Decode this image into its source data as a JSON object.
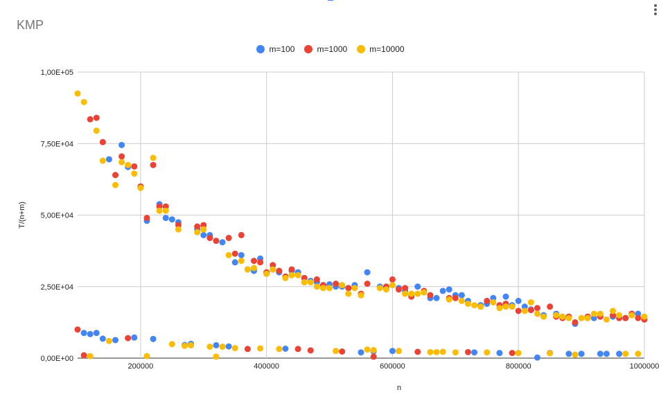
{
  "chart_data": {
    "type": "scatter",
    "title": "KMP",
    "xlabel": "n",
    "ylabel": "T/(n+m)",
    "xlim": [
      100000,
      1000000
    ],
    "ylim": [
      0,
      100000
    ],
    "x_tick_labels": [
      "200000",
      "400000",
      "600000",
      "800000",
      "1000000"
    ],
    "x_tick_values": [
      200000,
      400000,
      600000,
      800000,
      1000000
    ],
    "y_tick_labels": [
      "0,00E+00",
      "2,50E+04",
      "5,00E+04",
      "7,50E+04",
      "1,00E+05"
    ],
    "y_tick_values": [
      0,
      25000,
      50000,
      75000,
      100000
    ],
    "grid": true,
    "legend_position": "top",
    "series": [
      {
        "name": "m=100",
        "color": "#4285f4",
        "points": [
          [
            110000,
            8800
          ],
          [
            120000,
            8400
          ],
          [
            130000,
            8800
          ],
          [
            140000,
            6800
          ],
          [
            150000,
            69500
          ],
          [
            160000,
            6300
          ],
          [
            170000,
            74500
          ],
          [
            180000,
            66800
          ],
          [
            190000,
            7200
          ],
          [
            200000,
            60000
          ],
          [
            210000,
            48000
          ],
          [
            220000,
            6700
          ],
          [
            230000,
            53800
          ],
          [
            240000,
            49000
          ],
          [
            250000,
            48500
          ],
          [
            260000,
            47500
          ],
          [
            270000,
            4600
          ],
          [
            280000,
            5000
          ],
          [
            290000,
            45000
          ],
          [
            300000,
            43000
          ],
          [
            310000,
            43000
          ],
          [
            320000,
            4500
          ],
          [
            330000,
            40500
          ],
          [
            340000,
            4100
          ],
          [
            350000,
            33500
          ],
          [
            360000,
            36000
          ],
          [
            370000,
            31000
          ],
          [
            380000,
            30500
          ],
          [
            390000,
            34800
          ],
          [
            400000,
            29500
          ],
          [
            410000,
            31000
          ],
          [
            420000,
            30000
          ],
          [
            430000,
            3300
          ],
          [
            440000,
            30500
          ],
          [
            450000,
            30000
          ],
          [
            460000,
            28000
          ],
          [
            470000,
            27000
          ],
          [
            480000,
            26500
          ],
          [
            490000,
            25500
          ],
          [
            500000,
            25800
          ],
          [
            510000,
            25000
          ],
          [
            520000,
            25000
          ],
          [
            530000,
            24500
          ],
          [
            540000,
            25500
          ],
          [
            550000,
            2000
          ],
          [
            560000,
            30000
          ],
          [
            570000,
            2400
          ],
          [
            580000,
            25000
          ],
          [
            590000,
            24500
          ],
          [
            600000,
            2500
          ],
          [
            610000,
            24500
          ],
          [
            620000,
            23500
          ],
          [
            630000,
            22000
          ],
          [
            640000,
            25000
          ],
          [
            650000,
            23000
          ],
          [
            660000,
            21000
          ],
          [
            670000,
            21000
          ],
          [
            680000,
            23500
          ],
          [
            690000,
            24000
          ],
          [
            700000,
            22000
          ],
          [
            710000,
            22000
          ],
          [
            720000,
            20000
          ],
          [
            730000,
            2000
          ],
          [
            740000,
            18500
          ],
          [
            750000,
            19000
          ],
          [
            760000,
            21000
          ],
          [
            770000,
            1800
          ],
          [
            780000,
            21500
          ],
          [
            790000,
            18500
          ],
          [
            800000,
            20000
          ],
          [
            810000,
            18000
          ],
          [
            820000,
            17000
          ],
          [
            830000,
            200
          ],
          [
            840000,
            15000
          ],
          [
            850000,
            1800
          ],
          [
            860000,
            15500
          ],
          [
            870000,
            14500
          ],
          [
            880000,
            1500
          ],
          [
            890000,
            12000
          ],
          [
            900000,
            1500
          ],
          [
            910000,
            14000
          ],
          [
            920000,
            14000
          ],
          [
            930000,
            1500
          ],
          [
            940000,
            1500
          ],
          [
            950000,
            14500
          ],
          [
            960000,
            1500
          ],
          [
            970000,
            14000
          ],
          [
            980000,
            15500
          ],
          [
            990000,
            15500
          ],
          [
            1000000,
            13500
          ]
        ]
      },
      {
        "name": "m=1000",
        "color": "#ea4335",
        "points": [
          [
            100000,
            10000
          ],
          [
            110000,
            1000
          ],
          [
            120000,
            83500
          ],
          [
            130000,
            84000
          ],
          [
            140000,
            75500
          ],
          [
            160000,
            64000
          ],
          [
            170000,
            70500
          ],
          [
            180000,
            7000
          ],
          [
            190000,
            67000
          ],
          [
            200000,
            60000
          ],
          [
            210000,
            49000
          ],
          [
            220000,
            67500
          ],
          [
            230000,
            53000
          ],
          [
            240000,
            53000
          ],
          [
            260000,
            46500
          ],
          [
            290000,
            46000
          ],
          [
            300000,
            46500
          ],
          [
            310000,
            42000
          ],
          [
            320000,
            41000
          ],
          [
            340000,
            42000
          ],
          [
            350000,
            36500
          ],
          [
            360000,
            43000
          ],
          [
            370000,
            3200
          ],
          [
            380000,
            34000
          ],
          [
            390000,
            33500
          ],
          [
            400000,
            30000
          ],
          [
            410000,
            32500
          ],
          [
            420000,
            30500
          ],
          [
            430000,
            28500
          ],
          [
            440000,
            31000
          ],
          [
            450000,
            3200
          ],
          [
            460000,
            28000
          ],
          [
            470000,
            2700
          ],
          [
            480000,
            27500
          ],
          [
            490000,
            25500
          ],
          [
            510000,
            26000
          ],
          [
            520000,
            2300
          ],
          [
            530000,
            24500
          ],
          [
            550000,
            22500
          ],
          [
            560000,
            26000
          ],
          [
            570000,
            500
          ],
          [
            590000,
            25000
          ],
          [
            600000,
            27500
          ],
          [
            610000,
            24000
          ],
          [
            620000,
            24500
          ],
          [
            630000,
            21500
          ],
          [
            640000,
            2200
          ],
          [
            650000,
            23500
          ],
          [
            660000,
            22000
          ],
          [
            690000,
            21000
          ],
          [
            700000,
            21000
          ],
          [
            720000,
            2100
          ],
          [
            740000,
            18000
          ],
          [
            750000,
            20000
          ],
          [
            770000,
            18500
          ],
          [
            780000,
            19000
          ],
          [
            790000,
            1800
          ],
          [
            800000,
            16500
          ],
          [
            820000,
            16800
          ],
          [
            830000,
            17500
          ],
          [
            850000,
            18000
          ],
          [
            860000,
            14500
          ],
          [
            870000,
            14000
          ],
          [
            880000,
            14500
          ],
          [
            890000,
            12500
          ],
          [
            910000,
            14500
          ],
          [
            930000,
            14500
          ],
          [
            950000,
            15000
          ],
          [
            960000,
            14000
          ],
          [
            970000,
            14000
          ],
          [
            980000,
            15500
          ],
          [
            990000,
            14000
          ],
          [
            1000000,
            13500
          ]
        ]
      },
      {
        "name": "m=10000",
        "color": "#fbbc04",
        "points": [
          [
            100000,
            92500
          ],
          [
            110000,
            89500
          ],
          [
            120000,
            700
          ],
          [
            130000,
            79500
          ],
          [
            140000,
            69000
          ],
          [
            150000,
            6000
          ],
          [
            160000,
            60500
          ],
          [
            170000,
            68500
          ],
          [
            180000,
            67500
          ],
          [
            190000,
            64500
          ],
          [
            200000,
            59500
          ],
          [
            210000,
            700
          ],
          [
            220000,
            70000
          ],
          [
            230000,
            51500
          ],
          [
            240000,
            51500
          ],
          [
            250000,
            4900
          ],
          [
            260000,
            45000
          ],
          [
            270000,
            4300
          ],
          [
            280000,
            4500
          ],
          [
            290000,
            44000
          ],
          [
            300000,
            45000
          ],
          [
            310000,
            4000
          ],
          [
            320000,
            500
          ],
          [
            330000,
            4000
          ],
          [
            340000,
            36000
          ],
          [
            350000,
            3500
          ],
          [
            360000,
            34000
          ],
          [
            370000,
            31000
          ],
          [
            380000,
            31500
          ],
          [
            390000,
            3400
          ],
          [
            400000,
            29500
          ],
          [
            410000,
            31000
          ],
          [
            420000,
            3200
          ],
          [
            430000,
            28000
          ],
          [
            440000,
            29000
          ],
          [
            450000,
            29000
          ],
          [
            460000,
            26500
          ],
          [
            470000,
            26500
          ],
          [
            480000,
            25000
          ],
          [
            490000,
            24500
          ],
          [
            500000,
            24500
          ],
          [
            510000,
            2500
          ],
          [
            520000,
            25500
          ],
          [
            530000,
            22500
          ],
          [
            540000,
            24500
          ],
          [
            550000,
            22000
          ],
          [
            560000,
            3000
          ],
          [
            570000,
            2800
          ],
          [
            580000,
            24500
          ],
          [
            590000,
            24000
          ],
          [
            600000,
            25500
          ],
          [
            610000,
            2500
          ],
          [
            620000,
            22500
          ],
          [
            630000,
            22500
          ],
          [
            640000,
            22500
          ],
          [
            650000,
            23000
          ],
          [
            660000,
            2100
          ],
          [
            670000,
            2100
          ],
          [
            680000,
            2200
          ],
          [
            690000,
            20500
          ],
          [
            700000,
            2000
          ],
          [
            710000,
            20000
          ],
          [
            720000,
            19000
          ],
          [
            730000,
            18500
          ],
          [
            740000,
            18000
          ],
          [
            750000,
            2000
          ],
          [
            760000,
            19500
          ],
          [
            770000,
            17500
          ],
          [
            780000,
            18000
          ],
          [
            790000,
            18000
          ],
          [
            800000,
            1800
          ],
          [
            810000,
            16500
          ],
          [
            820000,
            19500
          ],
          [
            830000,
            15500
          ],
          [
            840000,
            14500
          ],
          [
            850000,
            1700
          ],
          [
            860000,
            15000
          ],
          [
            870000,
            14500
          ],
          [
            880000,
            14000
          ],
          [
            890000,
            1200
          ],
          [
            900000,
            14000
          ],
          [
            910000,
            14000
          ],
          [
            920000,
            15500
          ],
          [
            930000,
            15500
          ],
          [
            940000,
            13500
          ],
          [
            950000,
            16500
          ],
          [
            960000,
            15000
          ],
          [
            970000,
            1500
          ],
          [
            980000,
            15000
          ],
          [
            990000,
            1500
          ],
          [
            1000000,
            14500
          ]
        ]
      }
    ]
  }
}
